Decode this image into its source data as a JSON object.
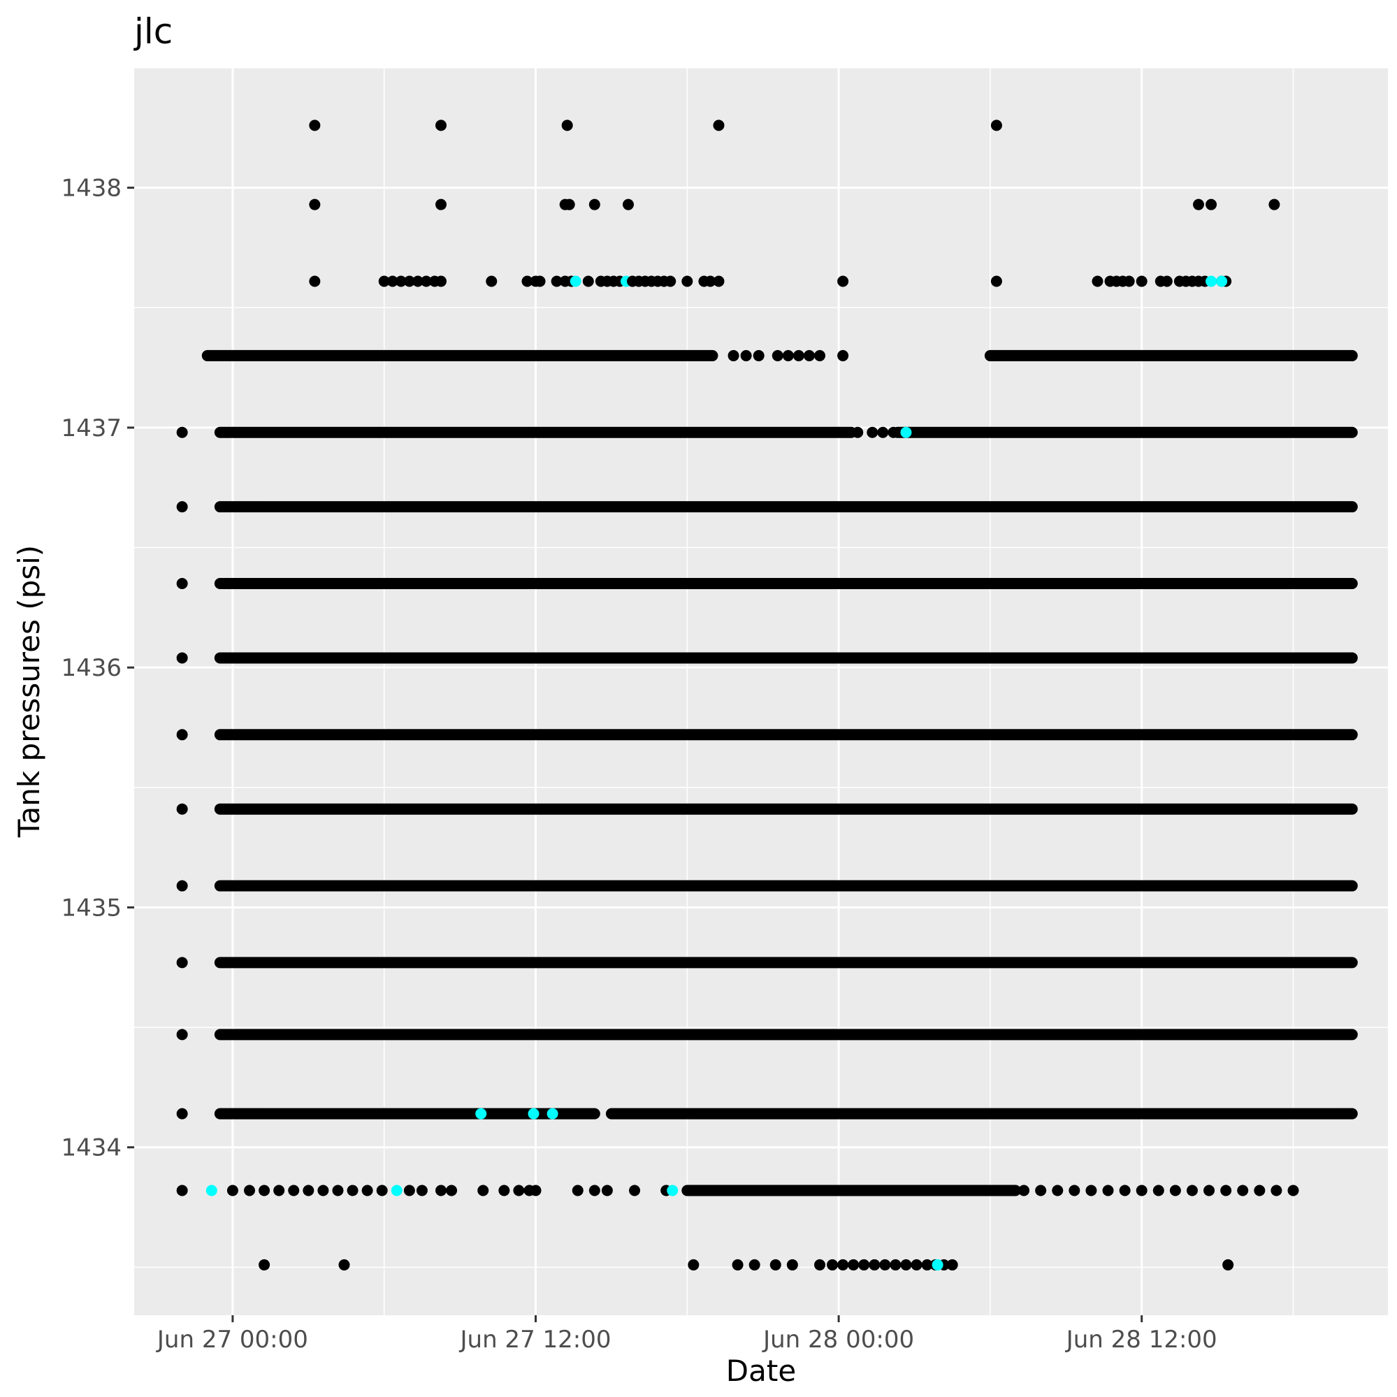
{
  "chart_data": {
    "type": "scatter",
    "title": "jlc",
    "xlabel": "Date",
    "ylabel": "Tank pressures (psi)",
    "x_ticks": [
      "Jun 27 00:00",
      "Jun 27 12:00",
      "Jun 28 00:00",
      "Jun 28 12:00"
    ],
    "y_ticks": [
      1434,
      1435,
      1436,
      1437,
      1438
    ],
    "xlim": [
      "2023-06-26T20:06",
      "2023-06-28T21:45"
    ],
    "ylim": [
      1433.3,
      1438.5
    ],
    "grid": true,
    "legend": "none",
    "background": "#ebebeb",
    "point_color": "#000000",
    "highlight_color": "#00ffff",
    "series": [
      {
        "dense_ranges": [
          {
            "y": 1434.14,
            "ranges": [
              [
                "2023-06-26T23:30",
                "2023-06-27T14:20"
              ],
              [
                "2023-06-27T15:00",
                "2023-06-28T20:20"
              ]
            ]
          },
          {
            "y": 1434.47,
            "ranges": [
              [
                "2023-06-26T23:30",
                "2023-06-28T20:20"
              ]
            ]
          },
          {
            "y": 1434.77,
            "ranges": [
              [
                "2023-06-26T23:30",
                "2023-06-28T20:20"
              ]
            ]
          },
          {
            "y": 1435.09,
            "ranges": [
              [
                "2023-06-26T23:30",
                "2023-06-28T20:20"
              ]
            ]
          },
          {
            "y": 1435.41,
            "ranges": [
              [
                "2023-06-26T23:30",
                "2023-06-28T20:20"
              ]
            ]
          },
          {
            "y": 1435.72,
            "ranges": [
              [
                "2023-06-26T23:30",
                "2023-06-28T20:20"
              ]
            ]
          },
          {
            "y": 1436.04,
            "ranges": [
              [
                "2023-06-26T23:30",
                "2023-06-28T20:20"
              ]
            ]
          },
          {
            "y": 1436.35,
            "ranges": [
              [
                "2023-06-26T23:30",
                "2023-06-28T20:20"
              ]
            ]
          },
          {
            "y": 1436.67,
            "ranges": [
              [
                "2023-06-26T23:30",
                "2023-06-28T20:20"
              ]
            ]
          },
          {
            "y": 1436.98,
            "ranges": [
              [
                "2023-06-26T23:30",
                "2023-06-28T00:30"
              ],
              [
                "2023-06-28T02:20",
                "2023-06-28T20:20"
              ]
            ]
          },
          {
            "y": 1437.3,
            "ranges": [
              [
                "2023-06-26T23:00",
                "2023-06-27T19:00"
              ],
              [
                "2023-06-28T06:00",
                "2023-06-28T20:20"
              ]
            ]
          },
          {
            "y": 1433.82,
            "ranges": [
              [
                "2023-06-27T18:00",
                "2023-06-28T07:00"
              ]
            ]
          }
        ],
        "points": [
          {
            "x": "2023-06-26T22:00",
            "y": 1436.98
          },
          {
            "x": "2023-06-26T22:00",
            "y": 1436.67
          },
          {
            "x": "2023-06-26T22:00",
            "y": 1436.35
          },
          {
            "x": "2023-06-26T22:00",
            "y": 1436.04
          },
          {
            "x": "2023-06-26T22:00",
            "y": 1435.72
          },
          {
            "x": "2023-06-26T22:00",
            "y": 1435.41
          },
          {
            "x": "2023-06-26T22:00",
            "y": 1435.09
          },
          {
            "x": "2023-06-26T22:00",
            "y": 1434.77
          },
          {
            "x": "2023-06-26T22:00",
            "y": 1434.47
          },
          {
            "x": "2023-06-26T22:00",
            "y": 1434.14
          },
          {
            "x": "2023-06-26T22:00",
            "y": 1433.82
          },
          {
            "x": "2023-06-27T01:15",
            "y": 1433.51
          },
          {
            "x": "2023-06-27T04:25",
            "y": 1433.51
          },
          {
            "x": "2023-06-27T18:15",
            "y": 1433.51
          },
          {
            "x": "2023-06-27T20:00",
            "y": 1433.51
          },
          {
            "x": "2023-06-27T20:40",
            "y": 1433.51
          },
          {
            "x": "2023-06-27T21:30",
            "y": 1433.51
          },
          {
            "x": "2023-06-27T22:10",
            "y": 1433.51
          },
          {
            "x": "2023-06-27T23:15",
            "y": 1433.51
          },
          {
            "x": "2023-06-27T23:45",
            "y": 1433.51
          },
          {
            "x": "2023-06-28T00:10",
            "y": 1433.51
          },
          {
            "x": "2023-06-28T00:35",
            "y": 1433.51
          },
          {
            "x": "2023-06-28T01:00",
            "y": 1433.51
          },
          {
            "x": "2023-06-28T01:25",
            "y": 1433.51
          },
          {
            "x": "2023-06-28T01:50",
            "y": 1433.51
          },
          {
            "x": "2023-06-28T02:15",
            "y": 1433.51
          },
          {
            "x": "2023-06-28T02:40",
            "y": 1433.51
          },
          {
            "x": "2023-06-28T03:05",
            "y": 1433.51
          },
          {
            "x": "2023-06-28T03:30",
            "y": 1433.51
          },
          {
            "x": "2023-06-28T03:50",
            "y": 1433.51
          },
          {
            "x": "2023-06-28T04:10",
            "y": 1433.51
          },
          {
            "x": "2023-06-28T04:30",
            "y": 1433.51
          },
          {
            "x": "2023-06-28T15:25",
            "y": 1433.51
          },
          {
            "x": "2023-06-27T03:15",
            "y": 1438.26
          },
          {
            "x": "2023-06-27T08:15",
            "y": 1438.26
          },
          {
            "x": "2023-06-27T13:15",
            "y": 1438.26
          },
          {
            "x": "2023-06-27T19:15",
            "y": 1438.26
          },
          {
            "x": "2023-06-28T06:15",
            "y": 1438.26
          },
          {
            "x": "2023-06-27T03:15",
            "y": 1437.93
          },
          {
            "x": "2023-06-27T08:15",
            "y": 1437.93
          },
          {
            "x": "2023-06-27T13:10",
            "y": 1437.93
          },
          {
            "x": "2023-06-27T13:20",
            "y": 1437.93
          },
          {
            "x": "2023-06-27T14:20",
            "y": 1437.93
          },
          {
            "x": "2023-06-27T15:40",
            "y": 1437.93
          },
          {
            "x": "2023-06-28T14:15",
            "y": 1437.93
          },
          {
            "x": "2023-06-28T14:45",
            "y": 1437.93
          },
          {
            "x": "2023-06-28T17:15",
            "y": 1437.93
          },
          {
            "x": "2023-06-27T03:15",
            "y": 1437.61
          },
          {
            "x": "2023-06-27T06:00",
            "y": 1437.61
          },
          {
            "x": "2023-06-27T06:20",
            "y": 1437.61
          },
          {
            "x": "2023-06-27T06:40",
            "y": 1437.61
          },
          {
            "x": "2023-06-27T07:00",
            "y": 1437.61
          },
          {
            "x": "2023-06-27T07:20",
            "y": 1437.61
          },
          {
            "x": "2023-06-27T07:40",
            "y": 1437.61
          },
          {
            "x": "2023-06-27T08:00",
            "y": 1437.61
          },
          {
            "x": "2023-06-27T08:15",
            "y": 1437.61
          },
          {
            "x": "2023-06-27T10:15",
            "y": 1437.61
          },
          {
            "x": "2023-06-27T11:40",
            "y": 1437.61
          },
          {
            "x": "2023-06-27T12:00",
            "y": 1437.61
          },
          {
            "x": "2023-06-27T12:10",
            "y": 1437.61
          },
          {
            "x": "2023-06-27T12:50",
            "y": 1437.61
          },
          {
            "x": "2023-06-27T13:10",
            "y": 1437.61
          },
          {
            "x": "2023-06-27T13:25",
            "y": 1437.61
          },
          {
            "x": "2023-06-27T13:35",
            "y": 1437.61,
            "color": "#00ffff"
          },
          {
            "x": "2023-06-27T14:05",
            "y": 1437.61
          },
          {
            "x": "2023-06-27T14:35",
            "y": 1437.61
          },
          {
            "x": "2023-06-27T14:50",
            "y": 1437.61
          },
          {
            "x": "2023-06-27T15:05",
            "y": 1437.61
          },
          {
            "x": "2023-06-27T15:20",
            "y": 1437.61
          },
          {
            "x": "2023-06-27T15:35",
            "y": 1437.61,
            "color": "#00ffff"
          },
          {
            "x": "2023-06-27T15:50",
            "y": 1437.61
          },
          {
            "x": "2023-06-27T16:05",
            "y": 1437.61
          },
          {
            "x": "2023-06-27T16:20",
            "y": 1437.61
          },
          {
            "x": "2023-06-27T16:35",
            "y": 1437.61
          },
          {
            "x": "2023-06-27T16:50",
            "y": 1437.61
          },
          {
            "x": "2023-06-27T17:05",
            "y": 1437.61
          },
          {
            "x": "2023-06-27T17:20",
            "y": 1437.61
          },
          {
            "x": "2023-06-27T18:00",
            "y": 1437.61
          },
          {
            "x": "2023-06-27T18:40",
            "y": 1437.61
          },
          {
            "x": "2023-06-27T18:55",
            "y": 1437.61
          },
          {
            "x": "2023-06-27T19:15",
            "y": 1437.61
          },
          {
            "x": "2023-06-28T00:10",
            "y": 1437.61
          },
          {
            "x": "2023-06-28T06:15",
            "y": 1437.61
          },
          {
            "x": "2023-06-28T10:15",
            "y": 1437.61
          },
          {
            "x": "2023-06-28T10:45",
            "y": 1437.61
          },
          {
            "x": "2023-06-28T11:00",
            "y": 1437.61
          },
          {
            "x": "2023-06-28T11:15",
            "y": 1437.61
          },
          {
            "x": "2023-06-28T11:30",
            "y": 1437.61
          },
          {
            "x": "2023-06-28T12:00",
            "y": 1437.61
          },
          {
            "x": "2023-06-28T12:45",
            "y": 1437.61
          },
          {
            "x": "2023-06-28T13:00",
            "y": 1437.61
          },
          {
            "x": "2023-06-28T13:30",
            "y": 1437.61
          },
          {
            "x": "2023-06-28T13:45",
            "y": 1437.61
          },
          {
            "x": "2023-06-28T14:00",
            "y": 1437.61
          },
          {
            "x": "2023-06-28T14:15",
            "y": 1437.61
          },
          {
            "x": "2023-06-28T14:30",
            "y": 1437.61
          },
          {
            "x": "2023-06-28T14:45",
            "y": 1437.61,
            "color": "#00ffff"
          },
          {
            "x": "2023-06-28T15:10",
            "y": 1437.61
          },
          {
            "x": "2023-06-28T15:20",
            "y": 1437.61
          },
          {
            "x": "2023-06-27T19:50",
            "y": 1437.3
          },
          {
            "x": "2023-06-27T20:20",
            "y": 1437.3
          },
          {
            "x": "2023-06-27T20:50",
            "y": 1437.3
          },
          {
            "x": "2023-06-27T21:35",
            "y": 1437.3
          },
          {
            "x": "2023-06-27T22:00",
            "y": 1437.3
          },
          {
            "x": "2023-06-27T22:25",
            "y": 1437.3
          },
          {
            "x": "2023-06-27T22:50",
            "y": 1437.3
          },
          {
            "x": "2023-06-27T23:15",
            "y": 1437.3
          },
          {
            "x": "2023-06-28T00:10",
            "y": 1437.3
          },
          {
            "x": "2023-06-28T00:45",
            "y": 1436.98
          },
          {
            "x": "2023-06-28T01:20",
            "y": 1436.98
          },
          {
            "x": "2023-06-28T01:45",
            "y": 1436.98
          },
          {
            "x": "2023-06-28T02:10",
            "y": 1436.98
          },
          {
            "x": "2023-06-28T02:40",
            "y": 1436.98,
            "color": "#00ffff"
          },
          {
            "x": "2023-06-27T00:00",
            "y": 1433.82
          },
          {
            "x": "2023-06-27T00:40",
            "y": 1433.82
          },
          {
            "x": "2023-06-27T01:15",
            "y": 1433.82
          },
          {
            "x": "2023-06-27T01:50",
            "y": 1433.82
          },
          {
            "x": "2023-06-27T02:25",
            "y": 1433.82
          },
          {
            "x": "2023-06-27T03:00",
            "y": 1433.82
          },
          {
            "x": "2023-06-27T03:35",
            "y": 1433.82
          },
          {
            "x": "2023-06-27T04:10",
            "y": 1433.82
          },
          {
            "x": "2023-06-27T04:45",
            "y": 1433.82
          },
          {
            "x": "2023-06-27T05:20",
            "y": 1433.82
          },
          {
            "x": "2023-06-27T05:55",
            "y": 1433.82
          },
          {
            "x": "2023-06-27T06:30",
            "y": 1433.82,
            "color": "#00ffff"
          },
          {
            "x": "2023-06-27T07:00",
            "y": 1433.82
          },
          {
            "x": "2023-06-27T07:30",
            "y": 1433.82
          },
          {
            "x": "2023-06-27T08:15",
            "y": 1433.82
          },
          {
            "x": "2023-06-27T08:40",
            "y": 1433.82
          },
          {
            "x": "2023-06-27T09:55",
            "y": 1433.82
          },
          {
            "x": "2023-06-27T10:45",
            "y": 1433.82
          },
          {
            "x": "2023-06-27T11:20",
            "y": 1433.82
          },
          {
            "x": "2023-06-27T11:45",
            "y": 1433.82
          },
          {
            "x": "2023-06-27T12:00",
            "y": 1433.82
          },
          {
            "x": "2023-06-27T13:40",
            "y": 1433.82
          },
          {
            "x": "2023-06-27T14:20",
            "y": 1433.82
          },
          {
            "x": "2023-06-27T14:50",
            "y": 1433.82
          },
          {
            "x": "2023-06-27T15:55",
            "y": 1433.82
          },
          {
            "x": "2023-06-27T17:10",
            "y": 1433.82
          },
          {
            "x": "2023-06-27T17:25",
            "y": 1433.82,
            "color": "#00ffff"
          },
          {
            "x": "2023-06-28T07:20",
            "y": 1433.82
          },
          {
            "x": "2023-06-28T08:00",
            "y": 1433.82
          },
          {
            "x": "2023-06-28T08:40",
            "y": 1433.82
          },
          {
            "x": "2023-06-28T09:20",
            "y": 1433.82
          },
          {
            "x": "2023-06-28T10:00",
            "y": 1433.82
          },
          {
            "x": "2023-06-28T10:40",
            "y": 1433.82
          },
          {
            "x": "2023-06-28T11:20",
            "y": 1433.82
          },
          {
            "x": "2023-06-28T12:00",
            "y": 1433.82
          },
          {
            "x": "2023-06-28T12:40",
            "y": 1433.82
          },
          {
            "x": "2023-06-28T13:20",
            "y": 1433.82
          },
          {
            "x": "2023-06-28T14:00",
            "y": 1433.82
          },
          {
            "x": "2023-06-28T14:40",
            "y": 1433.82
          },
          {
            "x": "2023-06-28T15:20",
            "y": 1433.82
          },
          {
            "x": "2023-06-28T16:00",
            "y": 1433.82
          },
          {
            "x": "2023-06-28T16:40",
            "y": 1433.82
          },
          {
            "x": "2023-06-28T17:20",
            "y": 1433.82
          },
          {
            "x": "2023-06-28T18:00",
            "y": 1433.82
          },
          {
            "x": "2023-06-27T06:00",
            "y": 1434.14
          },
          {
            "x": "2023-06-27T09:50",
            "y": 1434.14,
            "color": "#00ffff"
          },
          {
            "x": "2023-06-27T11:55",
            "y": 1434.14,
            "color": "#00ffff"
          },
          {
            "x": "2023-06-27T12:40",
            "y": 1434.14,
            "color": "#00ffff"
          },
          {
            "x": "2023-06-26T23:10",
            "y": 1433.82,
            "color": "#00ffff"
          },
          {
            "x": "2023-06-28T15:10",
            "y": 1437.61,
            "color": "#00ffff"
          },
          {
            "x": "2023-06-28T03:55",
            "y": 1433.51,
            "color": "#00ffff"
          }
        ]
      }
    ]
  }
}
